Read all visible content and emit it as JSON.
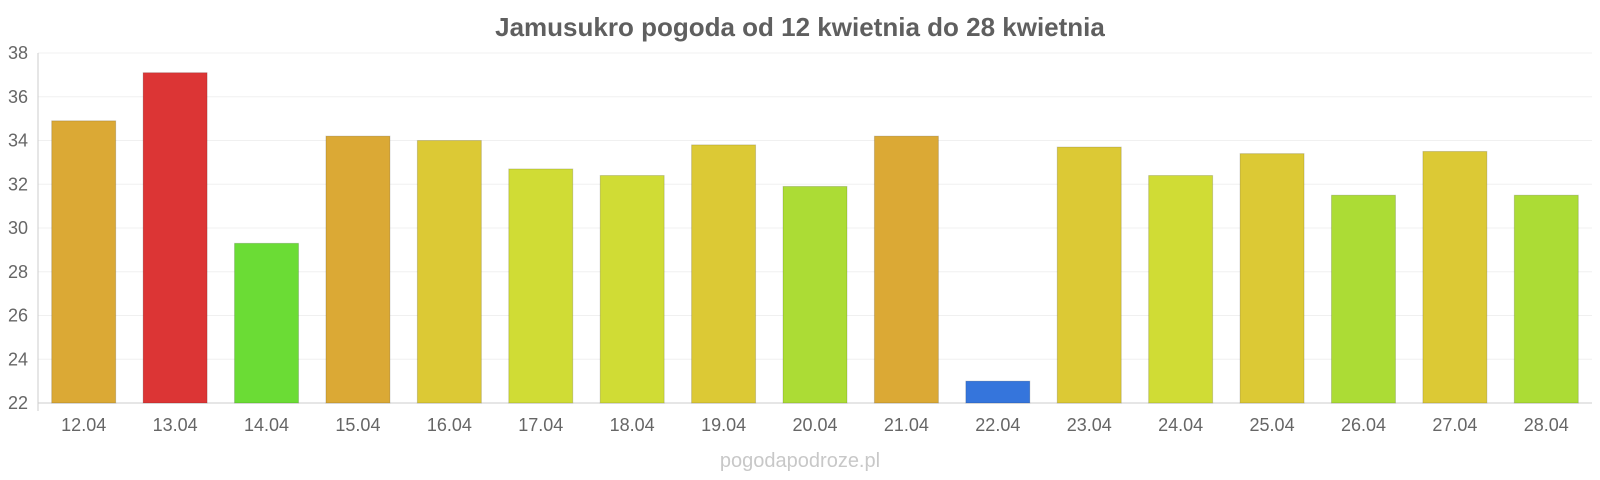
{
  "chart_data": {
    "type": "bar",
    "title": "Jamusukro pogoda od 12 kwietnia do 28 kwietnia",
    "xlabel": "",
    "ylabel": "",
    "categories": [
      "12.04",
      "13.04",
      "14.04",
      "15.04",
      "16.04",
      "17.04",
      "18.04",
      "19.04",
      "20.04",
      "21.04",
      "22.04",
      "23.04",
      "24.04",
      "25.04",
      "26.04",
      "27.04",
      "28.04"
    ],
    "values": [
      34.9,
      37.1,
      29.3,
      34.2,
      34.0,
      32.7,
      32.4,
      33.8,
      31.9,
      34.2,
      23.0,
      33.7,
      32.4,
      33.4,
      31.5,
      33.5,
      31.5
    ],
    "bar_colors": [
      "#dba935",
      "#dc3535",
      "#6bdc35",
      "#dba935",
      "#dcc935",
      "#d0dc35",
      "#d0dc35",
      "#dcc935",
      "#acdc35",
      "#dba935",
      "#3575dc",
      "#dcc935",
      "#d0dc35",
      "#dcc935",
      "#acdc35",
      "#dcc935",
      "#acdc35"
    ],
    "ylim": [
      22,
      38
    ],
    "yticks": [
      22,
      24,
      26,
      28,
      30,
      32,
      34,
      36,
      38
    ],
    "grid": true,
    "legend": "none"
  },
  "footer": {
    "watermark": "pogodapodroze.pl"
  }
}
